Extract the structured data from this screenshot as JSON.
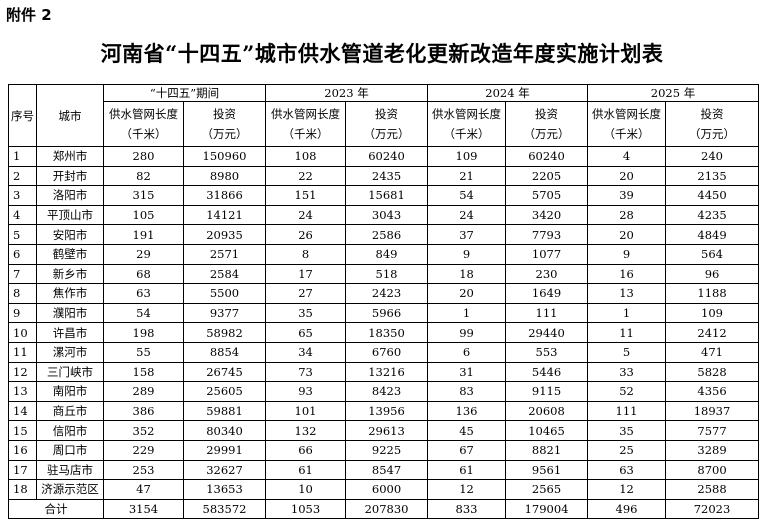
{
  "header": {
    "attachment": "附件 2",
    "title": "河南省“十四五”城市供水管道老化更新改造年度实施计划表"
  },
  "table": {
    "corner": [
      "序号",
      "城市"
    ],
    "groups": [
      {
        "name": "“十四五”期间",
        "length_label": "供水管网长度",
        "length_unit": "（千米）",
        "invest_label": "投资",
        "invest_unit": "（万元）"
      },
      {
        "name": "2023 年",
        "length_label": "供水管网长度",
        "length_unit": "（千米）",
        "invest_label": "投资",
        "invest_unit": "（万元）"
      },
      {
        "name": "2024 年",
        "length_label": "供水管网长度",
        "length_unit": "（千米）",
        "invest_label": "投资",
        "invest_unit": "（万元）"
      },
      {
        "name": "2025 年",
        "length_label": "供水管网长度",
        "length_unit": "（千米）",
        "invest_label": "投资",
        "invest_unit": "（万元）"
      }
    ],
    "rows": [
      [
        1,
        "郑州市",
        280,
        150960,
        108,
        60240,
        109,
        60240,
        4,
        240
      ],
      [
        2,
        "开封市",
        82,
        8980,
        22,
        2435,
        21,
        2205,
        20,
        2135
      ],
      [
        3,
        "洛阳市",
        315,
        31866,
        151,
        15681,
        54,
        5705,
        39,
        4450
      ],
      [
        4,
        "平顶山市",
        105,
        14121,
        24,
        3043,
        24,
        3420,
        28,
        4235
      ],
      [
        5,
        "安阳市",
        191,
        20935,
        26,
        2586,
        37,
        7793,
        20,
        4849
      ],
      [
        6,
        "鹤壁市",
        29,
        2571,
        8,
        849,
        9,
        1077,
        9,
        564
      ],
      [
        7,
        "新乡市",
        68,
        2584,
        17,
        518,
        18,
        230,
        16,
        96
      ],
      [
        8,
        "焦作市",
        63,
        5500,
        27,
        2423,
        20,
        1649,
        13,
        1188
      ],
      [
        9,
        "濮阳市",
        54,
        9377,
        35,
        5966,
        1,
        111,
        1,
        109
      ],
      [
        10,
        "许昌市",
        198,
        58982,
        65,
        18350,
        99,
        29440,
        11,
        2412
      ],
      [
        11,
        "漯河市",
        55,
        8854,
        34,
        6760,
        6,
        553,
        5,
        471
      ],
      [
        12,
        "三门峡市",
        158,
        26745,
        73,
        13216,
        31,
        5446,
        33,
        5828
      ],
      [
        13,
        "南阳市",
        289,
        25605,
        93,
        8423,
        83,
        9115,
        52,
        4356
      ],
      [
        14,
        "商丘市",
        386,
        59881,
        101,
        13956,
        136,
        20608,
        111,
        18937
      ],
      [
        15,
        "信阳市",
        352,
        80340,
        132,
        29613,
        45,
        10465,
        35,
        7577
      ],
      [
        16,
        "周口市",
        229,
        29991,
        66,
        9225,
        67,
        8821,
        25,
        3289
      ],
      [
        17,
        "驻马店市",
        253,
        32627,
        61,
        8547,
        61,
        9561,
        63,
        8700
      ],
      [
        18,
        "济源示范区",
        47,
        13653,
        10,
        6000,
        12,
        2565,
        12,
        2588
      ]
    ],
    "total": [
      "合计",
      3154,
      583572,
      1053,
      207830,
      833,
      179004,
      496,
      72023
    ]
  }
}
